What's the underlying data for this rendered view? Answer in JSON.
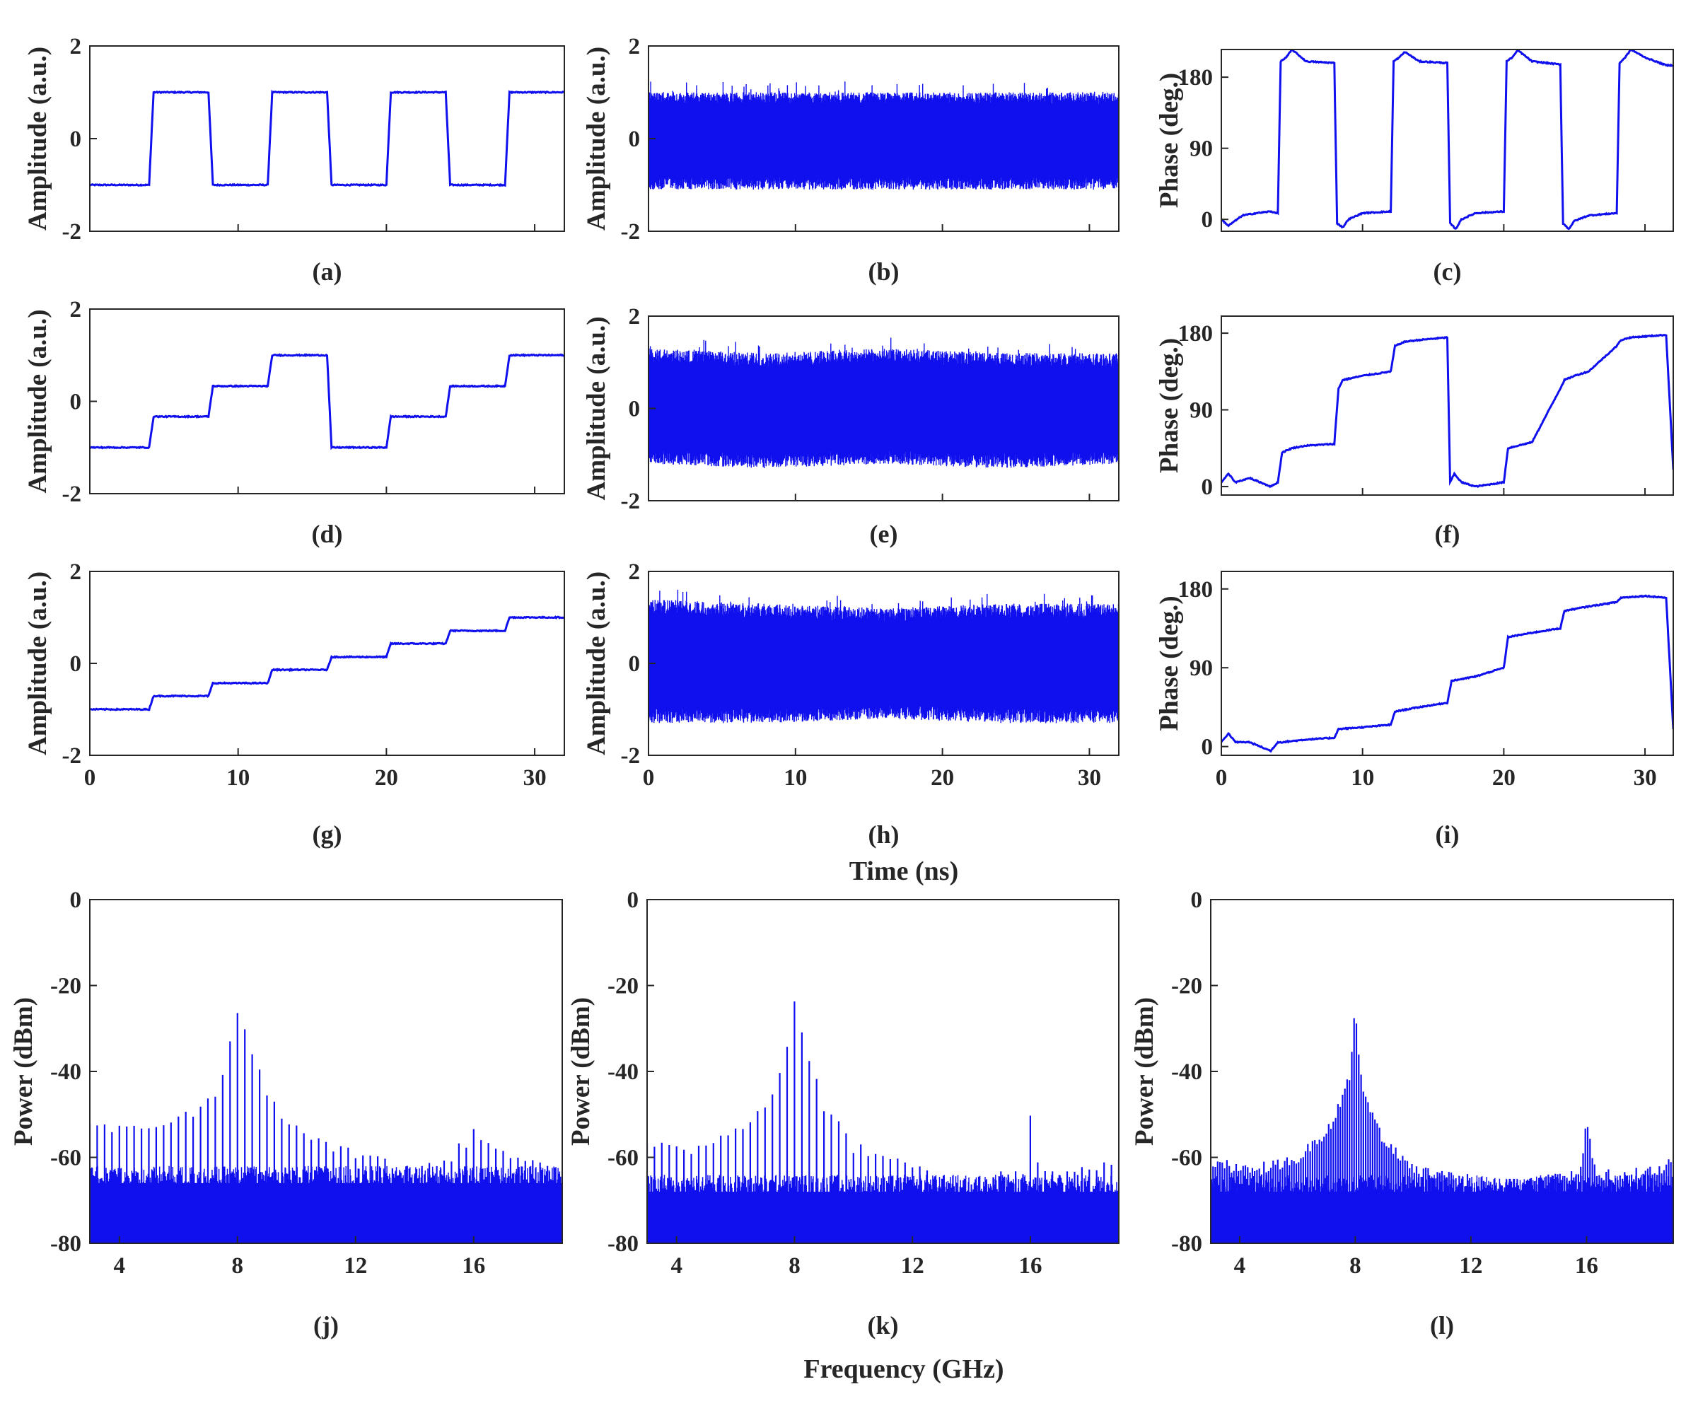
{
  "figure": {
    "time_xlabel": "Time (ns)",
    "freq_xlabel": "Frequency (GHz)",
    "line_color": "#1010ee",
    "axis_color": "#262626"
  },
  "chart_data": [
    {
      "id": "a",
      "type": "line",
      "label": "(a)",
      "ylabel": "Amplitude (a.u.)",
      "xlim": [
        0,
        32
      ],
      "ylim": [
        -2,
        2
      ],
      "yticks": [
        -2,
        0,
        2
      ],
      "xticks": [
        0,
        10,
        20,
        30
      ],
      "show_xtick_labels": false,
      "series": [
        {
          "name": "amplitude",
          "x": [
            0,
            4,
            4.3,
            8,
            8.3,
            12,
            12.3,
            16,
            16.3,
            20,
            20.3,
            24,
            24.3,
            28,
            28.3,
            32
          ],
          "y": [
            -1,
            -1,
            1,
            1,
            -1,
            -1,
            1,
            1,
            -1,
            -1,
            1,
            1,
            -1,
            -1,
            1,
            1
          ]
        }
      ]
    },
    {
      "id": "b",
      "type": "line",
      "label": "(b)",
      "ylabel": "Amplitude (a.u.)",
      "xlim": [
        0,
        32
      ],
      "ylim": [
        -2,
        2
      ],
      "yticks": [
        -2,
        0,
        2
      ],
      "xticks": [
        0,
        10,
        20,
        30
      ],
      "show_xtick_labels": false,
      "series": [
        {
          "name": "amplitude",
          "style": "noise",
          "x": [
            0,
            32
          ],
          "envelope_max": [
            1.0,
            1.0
          ],
          "envelope_min": [
            -1.1,
            -1.1
          ]
        }
      ]
    },
    {
      "id": "c",
      "type": "line",
      "label": "(c)",
      "ylabel": "Phase (deg.)",
      "xlim": [
        0,
        32
      ],
      "ylim": [
        -15,
        215
      ],
      "yticks": [
        0,
        90,
        180
      ],
      "xticks": [
        0,
        10,
        20,
        30
      ],
      "show_xtick_labels": false,
      "series": [
        {
          "name": "phase",
          "x": [
            0,
            0.5,
            1.5,
            2.5,
            3.5,
            4.0,
            4.2,
            4.6,
            5.0,
            6.0,
            8.0,
            8.2,
            8.6,
            9,
            10,
            12,
            12.2,
            12.6,
            13,
            14,
            16,
            16.2,
            16.6,
            17,
            18,
            20,
            20.2,
            20.6,
            21,
            22,
            24,
            24.2,
            24.6,
            25,
            26,
            28,
            28.2,
            28.6,
            29,
            30,
            31.5,
            32
          ],
          "y": [
            0,
            -8,
            5,
            8,
            10,
            8,
            200,
            205,
            215,
            200,
            198,
            -5,
            -10,
            0,
            8,
            10,
            200,
            205,
            212,
            200,
            198,
            -5,
            -12,
            0,
            8,
            10,
            200,
            205,
            214,
            200,
            196,
            -5,
            -12,
            -2,
            5,
            8,
            198,
            205,
            215,
            205,
            195,
            195
          ]
        }
      ]
    },
    {
      "id": "d",
      "type": "line",
      "label": "(d)",
      "ylabel": "Amplitude (a.u.)",
      "xlim": [
        0,
        32
      ],
      "ylim": [
        -2,
        2
      ],
      "yticks": [
        -2,
        0,
        2
      ],
      "xticks": [
        0,
        10,
        20,
        30
      ],
      "show_xtick_labels": false,
      "series": [
        {
          "name": "amplitude",
          "x": [
            0,
            4,
            4.3,
            8,
            8.3,
            12,
            12.3,
            16,
            16.3,
            20,
            20.3,
            24,
            24.3,
            28,
            28.3,
            32
          ],
          "y": [
            -1,
            -1,
            -0.33,
            -0.33,
            0.33,
            0.33,
            1,
            1,
            -1,
            -1,
            -0.33,
            -0.33,
            0.33,
            0.33,
            1,
            1
          ]
        }
      ]
    },
    {
      "id": "e",
      "type": "line",
      "label": "(e)",
      "ylabel": "Amplitude (a.u.)",
      "xlim": [
        0,
        32
      ],
      "ylim": [
        -2,
        2
      ],
      "yticks": [
        -2,
        0,
        2
      ],
      "xticks": [
        0,
        10,
        20,
        30
      ],
      "show_xtick_labels": false,
      "series": [
        {
          "name": "amplitude",
          "style": "noise",
          "x": [
            0,
            8,
            16,
            24,
            32
          ],
          "envelope_max": [
            1.3,
            1.2,
            1.3,
            1.2,
            1.2
          ],
          "envelope_min": [
            -1.2,
            -1.3,
            -1.2,
            -1.3,
            -1.2
          ]
        }
      ]
    },
    {
      "id": "f",
      "type": "line",
      "label": "(f)",
      "ylabel": "Phase (deg.)",
      "xlim": [
        0,
        32
      ],
      "ylim": [
        -10,
        200
      ],
      "yticks": [
        0,
        90,
        180
      ],
      "xticks": [
        0,
        10,
        20,
        30
      ],
      "show_xtick_labels": false,
      "series": [
        {
          "name": "phase",
          "x": [
            0,
            0.5,
            1,
            2,
            3.5,
            4.0,
            4.3,
            5,
            6,
            8,
            8.3,
            8.6,
            10,
            12,
            12.3,
            13,
            14,
            16,
            16.2,
            16.5,
            17,
            18,
            20,
            20.3,
            21,
            22,
            24,
            24.3,
            25,
            26,
            28,
            28.3,
            29,
            31.5,
            32
          ],
          "y": [
            5,
            15,
            5,
            10,
            0,
            5,
            40,
            45,
            48,
            50,
            115,
            125,
            130,
            135,
            165,
            170,
            172,
            175,
            5,
            15,
            5,
            0,
            5,
            45,
            48,
            52,
            115,
            125,
            130,
            135,
            165,
            172,
            175,
            178,
            20
          ]
        }
      ]
    },
    {
      "id": "g",
      "type": "line",
      "label": "(g)",
      "ylabel": "Amplitude (a.u.)",
      "xlim": [
        0,
        32
      ],
      "ylim": [
        -2,
        2
      ],
      "yticks": [
        -2,
        0,
        2
      ],
      "xticks": [
        0,
        10,
        20,
        30
      ],
      "xticklabels": [
        "0",
        "10",
        "20",
        "30"
      ],
      "show_xtick_labels": true,
      "series": [
        {
          "name": "amplitude",
          "x": [
            0,
            4,
            4.3,
            8,
            8.3,
            12,
            12.3,
            16,
            16.3,
            20,
            20.3,
            24,
            24.3,
            28,
            28.3,
            32
          ],
          "y": [
            -1,
            -1,
            -0.71,
            -0.71,
            -0.43,
            -0.43,
            -0.14,
            -0.14,
            0.14,
            0.14,
            0.43,
            0.43,
            0.71,
            0.71,
            1,
            1
          ]
        }
      ]
    },
    {
      "id": "h",
      "type": "line",
      "label": "(h)",
      "ylabel": "Amplitude (a.u.)",
      "xlim": [
        0,
        32
      ],
      "ylim": [
        -2,
        2
      ],
      "yticks": [
        -2,
        0,
        2
      ],
      "xticks": [
        0,
        10,
        20,
        30
      ],
      "xticklabels": [
        "0",
        "10",
        "20",
        "30"
      ],
      "show_xtick_labels": true,
      "series": [
        {
          "name": "amplitude",
          "style": "noise",
          "x": [
            0,
            8,
            16,
            24,
            32
          ],
          "envelope_max": [
            1.4,
            1.3,
            1.2,
            1.3,
            1.3
          ],
          "envelope_min": [
            -1.3,
            -1.3,
            -1.2,
            -1.3,
            -1.3
          ]
        }
      ]
    },
    {
      "id": "i",
      "type": "line",
      "label": "(i)",
      "ylabel": "Phase (deg.)",
      "xlim": [
        0,
        32
      ],
      "ylim": [
        -10,
        200
      ],
      "yticks": [
        0,
        90,
        180
      ],
      "xticks": [
        0,
        10,
        20,
        30
      ],
      "xticklabels": [
        "0",
        "10",
        "20",
        "30"
      ],
      "show_xtick_labels": true,
      "series": [
        {
          "name": "phase",
          "x": [
            0,
            0.5,
            1,
            2,
            3.5,
            4,
            4.3,
            6,
            8,
            8.3,
            10,
            12,
            12.3,
            14,
            16,
            16.3,
            18,
            20,
            20.3,
            22,
            24,
            24.3,
            26,
            28,
            28.3,
            30,
            31.5,
            32
          ],
          "y": [
            5,
            15,
            5,
            5,
            -5,
            5,
            5,
            8,
            10,
            20,
            22,
            25,
            40,
            45,
            50,
            75,
            80,
            90,
            125,
            130,
            135,
            155,
            160,
            165,
            170,
            172,
            170,
            20
          ]
        }
      ]
    },
    {
      "id": "j",
      "type": "spectrum",
      "label": "(j)",
      "ylabel": "Power (dBm)",
      "xlim": [
        3,
        19
      ],
      "ylim": [
        -80,
        0
      ],
      "yticks": [
        -80,
        -60,
        -40,
        -20,
        0
      ],
      "xticks": [
        4,
        8,
        12,
        16
      ],
      "xticklabels": [
        "4",
        "8",
        "12",
        "16"
      ],
      "floor_dbm": -68,
      "comb_spacing_ghz": 0.25,
      "series": [
        {
          "name": "envelope",
          "x": [
            3,
            4,
            5,
            6,
            7,
            7.5,
            8,
            8.5,
            9,
            10,
            11,
            12,
            13,
            14,
            15,
            16,
            17,
            18,
            19
          ],
          "y": [
            -51,
            -52,
            -52,
            -50,
            -46,
            -40,
            -24,
            -34,
            -45,
            -52,
            -55,
            -58,
            -60,
            -62,
            -60,
            -53,
            -58,
            -60,
            -61
          ]
        }
      ]
    },
    {
      "id": "k",
      "type": "spectrum",
      "label": "(k)",
      "ylabel": "Power (dBm)",
      "xlim": [
        3,
        19
      ],
      "ylim": [
        -80,
        0
      ],
      "yticks": [
        -80,
        -60,
        -40,
        -20,
        0
      ],
      "xticks": [
        4,
        8,
        12,
        16
      ],
      "xticklabels": [
        "4",
        "8",
        "12",
        "16"
      ],
      "floor_dbm": -70,
      "comb_spacing_ghz": 0.25,
      "series": [
        {
          "name": "envelope",
          "x": [
            3,
            4,
            5,
            6,
            7,
            7.5,
            8,
            8.5,
            9,
            10,
            11,
            12,
            13,
            14,
            15,
            15.8,
            16,
            16.3,
            17,
            18,
            19
          ],
          "y": [
            -56,
            -57,
            -56,
            -53,
            -47,
            -40,
            -23,
            -35,
            -47,
            -56,
            -59,
            -61,
            -63,
            -64,
            -63,
            -62,
            -50,
            -61,
            -63,
            -62,
            -60
          ]
        }
      ]
    },
    {
      "id": "l",
      "type": "spectrum",
      "label": "(l)",
      "ylabel": "Power (dBm)",
      "xlim": [
        3,
        19
      ],
      "ylim": [
        -80,
        0
      ],
      "yticks": [
        -80,
        -60,
        -40,
        -20,
        0
      ],
      "xticks": [
        4,
        8,
        12,
        16
      ],
      "xticklabels": [
        "4",
        "8",
        "12",
        "16"
      ],
      "floor_dbm": -70,
      "comb_spacing_ghz": 0.08,
      "series": [
        {
          "name": "envelope",
          "x": [
            3,
            4,
            5,
            6,
            6.5,
            7,
            7.5,
            7.8,
            8,
            8.2,
            8.5,
            9,
            10,
            11,
            12,
            13,
            14,
            15,
            15.8,
            16,
            16.3,
            17,
            18,
            19
          ],
          "y": [
            -60,
            -61,
            -61,
            -59,
            -56,
            -53,
            -45,
            -40,
            -23,
            -40,
            -47,
            -55,
            -61,
            -63,
            -64,
            -65,
            -65,
            -63,
            -62,
            -50,
            -62,
            -63,
            -62,
            -60
          ]
        }
      ]
    }
  ]
}
